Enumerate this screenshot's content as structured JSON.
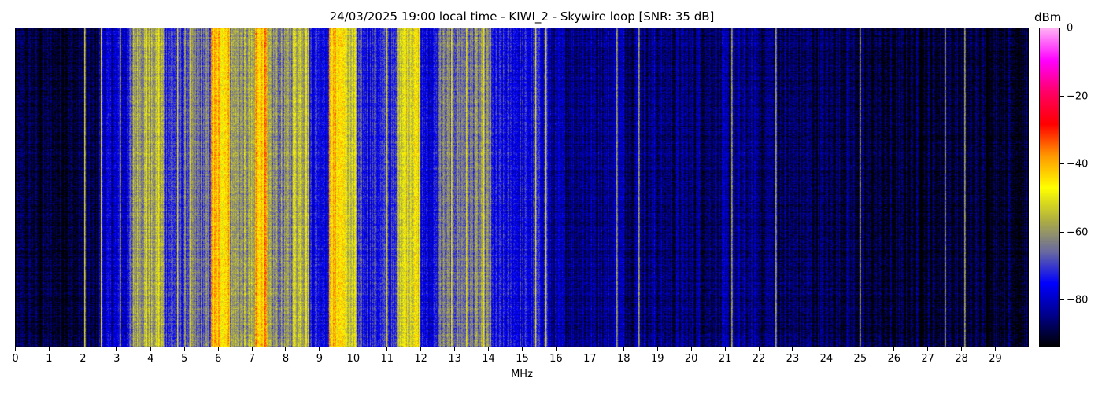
{
  "chart_data": {
    "type": "heatmap",
    "title": "24/03/2025 19:00 local time - KIWI_2 - Skywire loop [SNR: 35 dB]",
    "xlabel": "MHz",
    "xlim": [
      0,
      30
    ],
    "x_ticks": [
      0,
      1,
      2,
      3,
      4,
      5,
      6,
      7,
      8,
      9,
      10,
      11,
      12,
      13,
      14,
      15,
      16,
      17,
      18,
      19,
      20,
      21,
      22,
      23,
      24,
      25,
      26,
      27,
      28,
      29
    ],
    "colorbar": {
      "label": "dBm",
      "range": [
        -94,
        0
      ],
      "ticks": [
        0,
        -20,
        -40,
        -60,
        -80
      ],
      "colormap": [
        "#000000",
        "#00008b",
        "#0000ff",
        "#6a6aa0",
        "#b0b040",
        "#ffff00",
        "#ff9900",
        "#ff0000",
        "#ff0066",
        "#ff00ff",
        "#ffb0f5"
      ]
    },
    "band_levels_dBm": [
      {
        "from": 0,
        "to": 2.5,
        "level": -91
      },
      {
        "from": 2.5,
        "to": 3.3,
        "level": -80
      },
      {
        "from": 3.3,
        "to": 3.5,
        "level": -70
      },
      {
        "from": 3.5,
        "to": 4.4,
        "level": -58
      },
      {
        "from": 4.4,
        "to": 5.0,
        "level": -70
      },
      {
        "from": 5.0,
        "to": 5.8,
        "level": -66
      },
      {
        "from": 5.8,
        "to": 6.35,
        "level": -43
      },
      {
        "from": 6.35,
        "to": 7.1,
        "level": -60
      },
      {
        "from": 7.1,
        "to": 7.45,
        "level": -40
      },
      {
        "from": 7.45,
        "to": 8.2,
        "level": -62
      },
      {
        "from": 8.2,
        "to": 8.7,
        "level": -55
      },
      {
        "from": 8.7,
        "to": 9.3,
        "level": -73
      },
      {
        "from": 9.3,
        "to": 9.75,
        "level": -44
      },
      {
        "from": 9.75,
        "to": 10.1,
        "level": -55
      },
      {
        "from": 10.1,
        "to": 11.3,
        "level": -73
      },
      {
        "from": 11.3,
        "to": 12.0,
        "level": -50
      },
      {
        "from": 12.0,
        "to": 12.5,
        "level": -76
      },
      {
        "from": 12.5,
        "to": 14.1,
        "level": -64
      },
      {
        "from": 14.1,
        "to": 15.8,
        "level": -76
      },
      {
        "from": 15.8,
        "to": 19.0,
        "level": -84
      },
      {
        "from": 19.0,
        "to": 22.5,
        "level": -86
      },
      {
        "from": 22.5,
        "to": 25.0,
        "level": -88
      },
      {
        "from": 25.0,
        "to": 30,
        "level": -91
      }
    ],
    "carriers_MHz": [
      2.05,
      2.55,
      3.1,
      3.9,
      4.25,
      4.8,
      5.2,
      6.05,
      6.2,
      7.25,
      7.35,
      8.45,
      8.6,
      9.4,
      9.55,
      9.65,
      9.9,
      11.0,
      11.7,
      11.9,
      12.9,
      13.35,
      13.85,
      15.4,
      15.7,
      17.8,
      18.45,
      21.2,
      22.5,
      25.0,
      27.5,
      28.1
    ]
  }
}
